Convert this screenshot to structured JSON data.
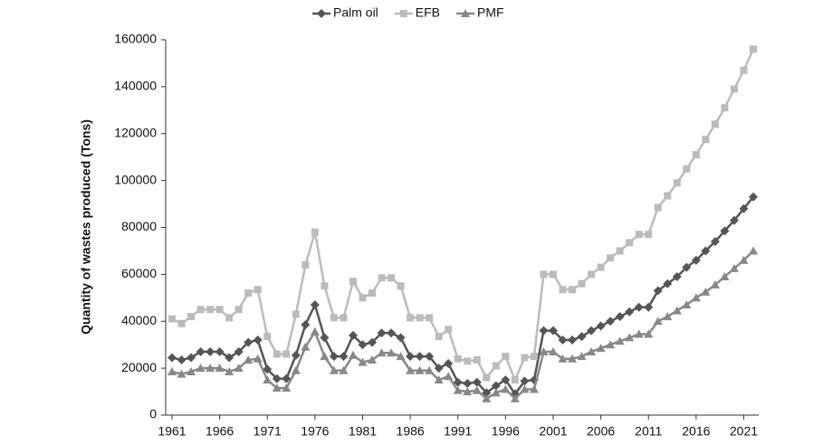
{
  "chart_data": {
    "type": "line",
    "y_label": "Quantity of wastes produced (Tons)",
    "x": [
      1961,
      1962,
      1963,
      1964,
      1965,
      1966,
      1967,
      1968,
      1969,
      1970,
      1971,
      1972,
      1973,
      1974,
      1975,
      1976,
      1977,
      1978,
      1979,
      1980,
      1981,
      1982,
      1983,
      1984,
      1985,
      1986,
      1987,
      1988,
      1989,
      1990,
      1991,
      1992,
      1993,
      1994,
      1995,
      1996,
      1997,
      1998,
      1999,
      2000,
      2001,
      2002,
      2003,
      2004,
      2005,
      2006,
      2007,
      2008,
      2009,
      2010,
      2011,
      2012,
      2013,
      2014,
      2015,
      2016,
      2017,
      2018,
      2019,
      2020,
      2021,
      2022
    ],
    "xlim": [
      1961,
      2022
    ],
    "xticks": [
      1961,
      1966,
      1971,
      1976,
      1981,
      1986,
      1991,
      1996,
      2001,
      2006,
      2011,
      2016,
      2021
    ],
    "ylim": [
      0,
      160000
    ],
    "yticks": [
      0,
      20000,
      40000,
      60000,
      80000,
      100000,
      120000,
      140000,
      160000
    ],
    "legend": "top",
    "series": [
      {
        "name": "Palm oil",
        "color": "#555555",
        "marker": "diamond",
        "values": [
          24500,
          23500,
          24500,
          27000,
          27000,
          27000,
          24500,
          27000,
          31000,
          32000,
          19500,
          15500,
          15500,
          25500,
          38500,
          47000,
          33000,
          25000,
          25000,
          34000,
          30000,
          31000,
          35000,
          35000,
          33000,
          25000,
          25000,
          25000,
          20000,
          22000,
          14000,
          13500,
          14000,
          9500,
          12500,
          15000,
          9000,
          14500,
          15000,
          36000,
          36000,
          32000,
          32000,
          33500,
          36000,
          38000,
          40000,
          42000,
          44000,
          46000,
          46000,
          53000,
          56000,
          59000,
          63000,
          66000,
          70000,
          74000,
          78500,
          83000,
          88000,
          93000
        ]
      },
      {
        "name": "EFB",
        "color": "#bbbbbb",
        "marker": "square",
        "values": [
          41000,
          39000,
          42000,
          45000,
          45000,
          45000,
          41500,
          45000,
          52000,
          53500,
          33500,
          26000,
          26000,
          43000,
          64000,
          78000,
          55000,
          41500,
          41500,
          57000,
          50000,
          52000,
          58500,
          58500,
          55000,
          41500,
          41500,
          41500,
          33500,
          36500,
          24000,
          23000,
          23500,
          16000,
          21000,
          25000,
          15000,
          24500,
          25000,
          60000,
          60000,
          53500,
          53500,
          56000,
          60000,
          63000,
          67000,
          70000,
          73500,
          77000,
          77000,
          88500,
          93500,
          99000,
          105000,
          111000,
          117500,
          124000,
          131000,
          139000,
          147000,
          156000
        ]
      },
      {
        "name": "PMF",
        "color": "#888888",
        "marker": "triangle",
        "values": [
          18500,
          17500,
          18500,
          20000,
          20000,
          20000,
          18500,
          20000,
          23500,
          24000,
          15000,
          11500,
          11500,
          19000,
          29000,
          35500,
          25000,
          19000,
          19000,
          25500,
          22500,
          23500,
          26500,
          26500,
          25000,
          19000,
          19000,
          19000,
          15000,
          16500,
          10500,
          10000,
          10500,
          7000,
          9500,
          11000,
          7000,
          11000,
          11000,
          27000,
          27000,
          24000,
          24000,
          25000,
          27000,
          28500,
          30000,
          31500,
          33000,
          34500,
          34500,
          40000,
          42000,
          44500,
          47000,
          50000,
          52500,
          55500,
          59000,
          62500,
          66000,
          70000
        ]
      }
    ]
  }
}
